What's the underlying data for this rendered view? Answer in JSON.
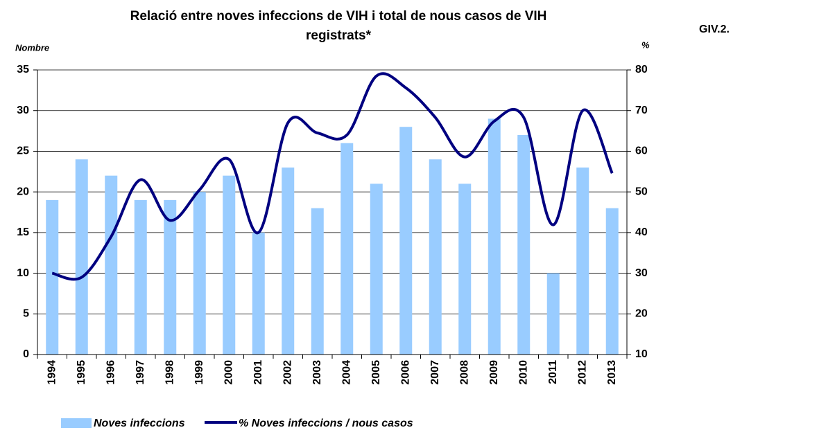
{
  "chart_data": {
    "type": "bar-line",
    "title": [
      "Relació entre noves infeccions de VIH i total de nous casos de VIH",
      "registrats*"
    ],
    "code": "GIV.2.",
    "y_label": "Nombre",
    "y2_label": "%",
    "categories": [
      "1994",
      "1995",
      "1996",
      "1997",
      "1998",
      "1999",
      "2000",
      "2001",
      "2002",
      "2003",
      "2004",
      "2005",
      "2006",
      "2007",
      "2008",
      "2009",
      "2010",
      "2011",
      "2012",
      "2013"
    ],
    "series": [
      {
        "name": "Noves infeccions",
        "color": "#99ccff",
        "values": [
          19,
          24,
          22,
          19,
          19,
          20,
          22,
          15,
          23,
          18,
          26,
          21,
          28,
          24,
          21,
          29,
          27,
          10,
          23,
          18
        ]
      },
      {
        "name": "% Noves infeccions / nous casos",
        "color": "#000080",
        "axis": "y2",
        "values": [
          30,
          29,
          39,
          53,
          43,
          50.5,
          58,
          40,
          67,
          64.5,
          64,
          78.5,
          75.6,
          68.3,
          58.6,
          67.4,
          68.3,
          41.9,
          70,
          54.6
        ]
      }
    ],
    "ylim": [
      0,
      35
    ],
    "yticks": [
      0,
      5,
      10,
      15,
      20,
      25,
      30,
      35
    ],
    "y2lim": [
      10,
      80
    ],
    "y2ticks": [
      10,
      20,
      30,
      40,
      50,
      60,
      70,
      80
    ],
    "grid": true,
    "legend": "bottom"
  }
}
